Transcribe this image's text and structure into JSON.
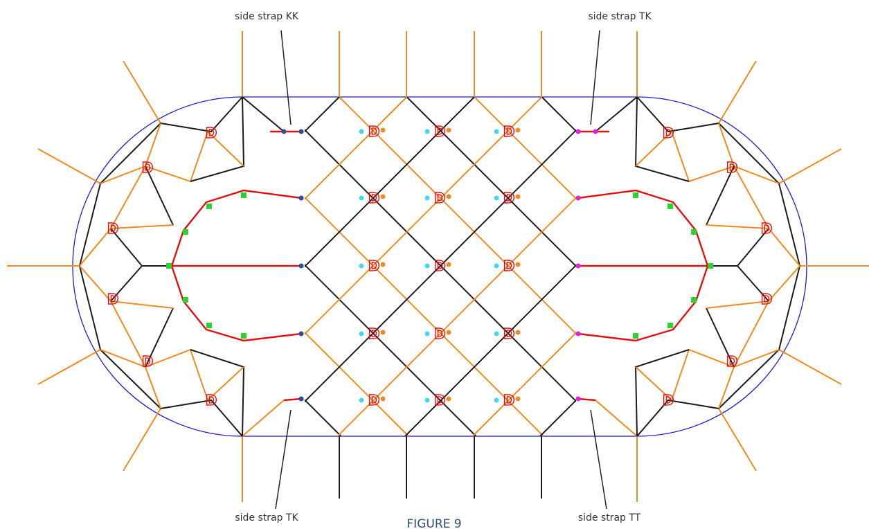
{
  "labels": {
    "top_left": "side strap KK",
    "top_right": "side strap TK",
    "bottom_left": "side strap TK",
    "bottom_right": "side strap TT"
  },
  "marker": "D",
  "caption": "FIGURE 9"
}
